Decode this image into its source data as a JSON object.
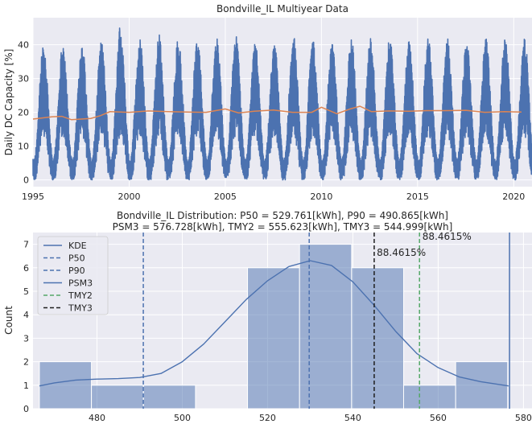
{
  "colors": {
    "background": "#eaeaf2",
    "grid": "#ffffff",
    "series_blue": "#4c72b0",
    "series_orange": "#dd8452",
    "hist_fill": "#4c72b0",
    "tmy2": "#55a868",
    "tmy3": "#1f1f1f"
  },
  "chart_data": [
    {
      "type": "line",
      "title": "Bondville_IL Multiyear Data",
      "xlabel": "",
      "ylabel": "Daily DC Capacity [%]",
      "xlim": [
        1995.0,
        2020.95
      ],
      "ylim": [
        -2,
        48
      ],
      "x_ticks": [
        1995,
        2000,
        2005,
        2010,
        2015,
        2020
      ],
      "y_ticks": [
        0,
        10,
        20,
        30,
        40
      ],
      "grid": true,
      "series": [
        {
          "style": "dense daily values oscillating seasonally",
          "annual_peak_by_year": [
            40,
            40,
            40,
            41,
            46,
            42,
            43,
            42,
            42,
            42,
            43,
            41,
            41,
            43,
            42,
            41,
            42,
            42,
            42,
            41,
            42,
            42,
            41,
            42,
            42,
            43
          ],
          "annual_trough": 0
        },
        {
          "style": "rolling mean",
          "x": [
            1995.0,
            1996.0,
            1996.5,
            1997.0,
            1998.0,
            1998.5,
            1999.0,
            2000.0,
            2001.0,
            2002.0,
            2003.0,
            2004.0,
            2005.0,
            2005.7,
            2006.5,
            2007.5,
            2008.5,
            2009.5,
            2010.0,
            2010.8,
            2011.5,
            2012.0,
            2012.6,
            2013.5,
            2014.5,
            2015.5,
            2016.5,
            2017.5,
            2018.5,
            2019.5,
            2020.4
          ],
          "y": [
            18.0,
            18.7,
            18.8,
            17.8,
            18.2,
            19.0,
            20.2,
            20.0,
            20.4,
            20.2,
            20.1,
            20.0,
            21.0,
            19.8,
            20.3,
            20.7,
            20.0,
            20.0,
            21.5,
            19.6,
            21.0,
            21.8,
            20.2,
            20.4,
            20.3,
            20.5,
            20.5,
            20.6,
            20.0,
            20.2,
            20.1
          ]
        }
      ]
    },
    {
      "type": "bar",
      "title": "Bondville_IL Distribution: P50 = 529.761[kWh], P90 = 490.865[kWh]",
      "subtitle": "PSM3 = 576.728[kWh], TMY2 = 555.623[kWh], TMY3 = 544.999[kWh]",
      "xlabel": "",
      "ylabel": "Count",
      "xlim": [
        465,
        582
      ],
      "ylim": [
        0,
        7.5
      ],
      "x_ticks": [
        480,
        500,
        520,
        540,
        560,
        580
      ],
      "y_ticks": [
        0,
        1,
        2,
        3,
        4,
        5,
        6,
        7
      ],
      "grid": true,
      "bins": [
        {
          "x0": 466.5,
          "x1": 478.7,
          "count": 2
        },
        {
          "x0": 478.7,
          "x1": 490.9,
          "count": 1
        },
        {
          "x0": 490.9,
          "x1": 503.1,
          "count": 1
        },
        {
          "x0": 503.1,
          "x1": 515.3,
          "count": 0
        },
        {
          "x0": 515.3,
          "x1": 527.5,
          "count": 6
        },
        {
          "x0": 527.5,
          "x1": 539.7,
          "count": 7
        },
        {
          "x0": 539.7,
          "x1": 551.9,
          "count": 6
        },
        {
          "x0": 551.9,
          "x1": 564.1,
          "count": 1
        },
        {
          "x0": 564.1,
          "x1": 576.3,
          "count": 2
        }
      ],
      "kde": {
        "x": [
          466.5,
          470,
          475,
          480,
          485,
          490,
          495,
          500,
          505,
          510,
          515,
          520,
          525,
          530,
          535,
          540,
          545,
          550,
          555,
          560,
          565,
          570,
          576.5
        ],
        "y": [
          0.97,
          1.1,
          1.22,
          1.26,
          1.28,
          1.33,
          1.5,
          2.0,
          2.75,
          3.7,
          4.65,
          5.45,
          6.05,
          6.3,
          6.1,
          5.4,
          4.4,
          3.3,
          2.35,
          1.75,
          1.35,
          1.15,
          0.97
        ]
      },
      "legend": {
        "placement": "upper-left",
        "entries": [
          {
            "label": "KDE",
            "style": "solid",
            "color": "#4c72b0"
          },
          {
            "label": "P50",
            "style": "dashed",
            "color": "#4c72b0"
          },
          {
            "label": "P90",
            "style": "dashed",
            "color": "#4c72b0"
          },
          {
            "label": "PSM3",
            "style": "solid",
            "color": "#4c72b0"
          },
          {
            "label": "TMY2",
            "style": "dashed",
            "color": "#55a868"
          },
          {
            "label": "TMY3",
            "style": "dashed",
            "color": "#1f1f1f"
          }
        ]
      },
      "vlines": [
        {
          "name": "P50",
          "x": 529.761,
          "style": "dashed",
          "color": "#4c72b0"
        },
        {
          "name": "P90",
          "x": 490.865,
          "style": "dashed",
          "color": "#4c72b0"
        },
        {
          "name": "PSM3",
          "x": 576.728,
          "style": "solid",
          "color": "#4c72b0"
        },
        {
          "name": "TMY2",
          "x": 555.623,
          "style": "dashed",
          "color": "#55a868"
        },
        {
          "name": "TMY3",
          "x": 544.999,
          "style": "dashed",
          "color": "#1f1f1f"
        }
      ],
      "annotations": [
        {
          "text": "88.4615%",
          "x": 556.3,
          "y": 7.2
        },
        {
          "text": "88.4615%",
          "x": 545.6,
          "y": 6.5
        }
      ]
    }
  ]
}
